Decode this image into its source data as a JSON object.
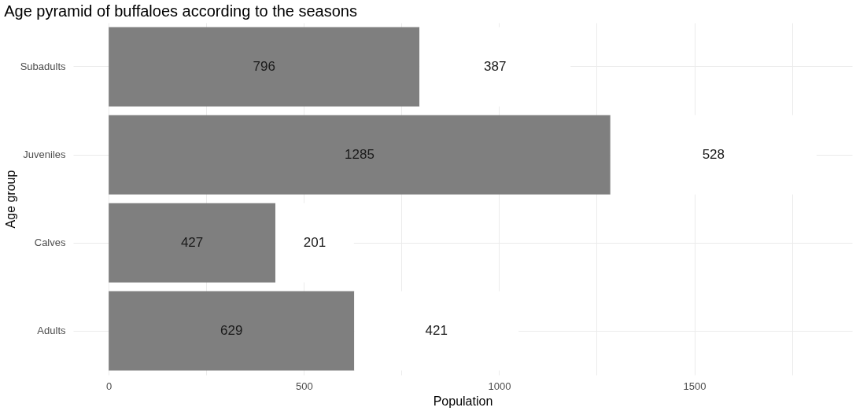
{
  "chart_data": {
    "type": "bar",
    "orientation": "horizontal",
    "stacked": true,
    "title": "Age pyramid of buffaloes according to the seasons",
    "xlabel": "Population",
    "ylabel": "Age group",
    "categories": [
      "Subadults",
      "Juveniles",
      "Calves",
      "Adults"
    ],
    "series": [
      {
        "color": "#7f7f7f",
        "values": [
          796,
          1285,
          427,
          629
        ]
      },
      {
        "color": "#ffffff",
        "values": [
          387,
          528,
          201,
          421
        ]
      }
    ],
    "data_labels": true,
    "xlim": [
      -91,
      1904
    ],
    "xticks": [
      0,
      {
        "value": 250,
        "label": null
      },
      500,
      {
        "value": 750,
        "label": null
      },
      1000,
      {
        "value": 1250,
        "label": null
      },
      1500,
      {
        "value": 1750,
        "label": null
      }
    ],
    "grid": true
  }
}
